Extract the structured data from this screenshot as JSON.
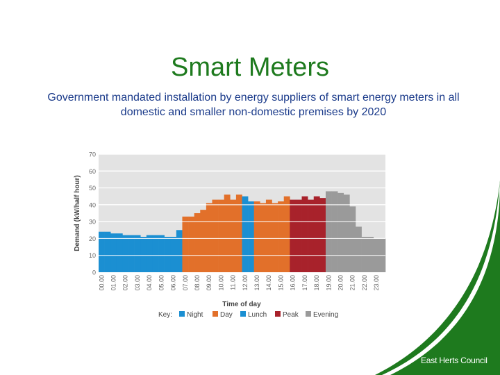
{
  "slide": {
    "title": "Smart Meters",
    "subtitle": "Government mandated installation by energy suppliers of smart energy meters in all domestic and smaller non-domestic premises by 2020"
  },
  "brand": {
    "name": "East Herts Council",
    "color": "#1e7a1e"
  },
  "chart_data": {
    "type": "bar",
    "title": "",
    "xlabel": "Time of day",
    "ylabel": "Demand (kW/half hour)",
    "ylim": [
      0,
      70
    ],
    "yticks": [
      0,
      10,
      20,
      30,
      40,
      50,
      60,
      70
    ],
    "grid": true,
    "legend_position": "bottom",
    "legend_title": "Key:",
    "x_tick_labels": [
      "00.00",
      "01.00",
      "02.00",
      "03.00",
      "04.00",
      "05.00",
      "06.00",
      "07.00",
      "08.00",
      "09.00",
      "10.00",
      "11.00",
      "12.00",
      "13.00",
      "14.00",
      "15.00",
      "16.00",
      "17.00",
      "18.00",
      "19.00",
      "20.00",
      "21.00",
      "22.00",
      "23.00"
    ],
    "categories": [
      "00.00",
      "00.30",
      "01.00",
      "01.30",
      "02.00",
      "02.30",
      "03.00",
      "03.30",
      "04.00",
      "04.30",
      "05.00",
      "05.30",
      "06.00",
      "06.30",
      "07.00",
      "07.30",
      "08.00",
      "08.30",
      "09.00",
      "09.30",
      "10.00",
      "10.30",
      "11.00",
      "11.30",
      "12.00",
      "12.30",
      "13.00",
      "13.30",
      "14.00",
      "14.30",
      "15.00",
      "15.30",
      "16.00",
      "16.30",
      "17.00",
      "17.30",
      "18.00",
      "18.30",
      "19.00",
      "19.30",
      "20.00",
      "20.30",
      "21.00",
      "21.30",
      "22.00",
      "22.30",
      "23.00",
      "23.30"
    ],
    "values": [
      24,
      24,
      23,
      23,
      22,
      22,
      22,
      21,
      22,
      22,
      22,
      21,
      21,
      25,
      33,
      33,
      35,
      37,
      41,
      43,
      43,
      46,
      43,
      46,
      45,
      42,
      42,
      41,
      43,
      41,
      42,
      45,
      43,
      43,
      45,
      43,
      45,
      44,
      48,
      48,
      47,
      46,
      39,
      27,
      21,
      21,
      20,
      20
    ],
    "series": [
      {
        "name": "Night",
        "color": "#1b8fd2",
        "start": "00.00",
        "end": "06.30"
      },
      {
        "name": "Day",
        "color": "#e2702a",
        "start": "07.00",
        "end": "11.30"
      },
      {
        "name": "Lunch",
        "color": "#1b8fd2",
        "start": "12.00",
        "end": "12.30"
      },
      {
        "name": "Day",
        "color": "#e2702a",
        "start": "13.00",
        "end": "15.30"
      },
      {
        "name": "Peak",
        "color": "#a8222b",
        "start": "16.00",
        "end": "18.30"
      },
      {
        "name": "Evening",
        "color": "#9a9a9a",
        "start": "19.00",
        "end": "23.30"
      }
    ],
    "legend": [
      {
        "name": "Night",
        "color": "#1b8fd2"
      },
      {
        "name": "Day",
        "color": "#e2702a"
      },
      {
        "name": "Lunch",
        "color": "#1b8fd2"
      },
      {
        "name": "Peak",
        "color": "#a8222b"
      },
      {
        "name": "Evening",
        "color": "#9a9a9a"
      }
    ],
    "colors": {
      "plot_background": "#e3e3e3",
      "gridline": "#ffffff",
      "axis_text": "#666666"
    }
  }
}
